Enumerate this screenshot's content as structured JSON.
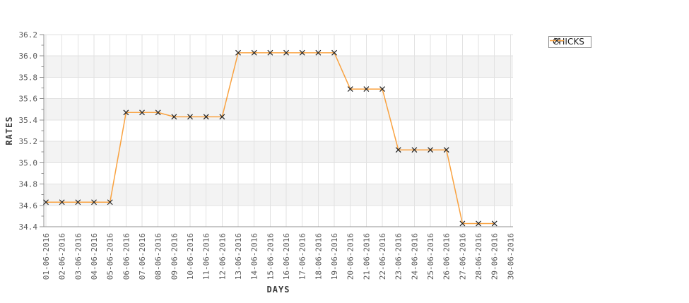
{
  "legend": {
    "items": [
      {
        "label": "CHICKS",
        "line_color": "#f9a240",
        "marker": "x"
      }
    ]
  },
  "colors": {
    "series_line": "#f9a240",
    "marker": "#222222",
    "plot_band": "#f3f3f3",
    "gridline": "#e2e2e2",
    "axis": "#909090",
    "tick_text": "#595959",
    "axis_label_text": "#3d3d3d",
    "legend_border": "#8c8c8c"
  },
  "chart_data": {
    "type": "line",
    "title": "",
    "xlabel": "DAYS",
    "ylabel": "RATES",
    "categories": [
      "01-06-2016",
      "02-06-2016",
      "03-06-2016",
      "04-06-2016",
      "05-06-2016",
      "06-06-2016",
      "07-06-2016",
      "08-06-2016",
      "09-06-2016",
      "10-06-2016",
      "11-06-2016",
      "12-06-2016",
      "13-06-2016",
      "14-06-2016",
      "15-06-2016",
      "16-06-2016",
      "17-06-2016",
      "18-06-2016",
      "19-06-2016",
      "20-06-2016",
      "21-06-2016",
      "22-06-2016",
      "23-06-2016",
      "24-06-2016",
      "25-06-2016",
      "26-06-2016",
      "27-06-2016",
      "28-06-2016",
      "29-06-2016",
      "30-06-2016"
    ],
    "series": [
      {
        "name": "CHICKS",
        "color": "#f9a240",
        "marker": "x",
        "marker_color": "#222222",
        "values": [
          34.63,
          34.63,
          34.63,
          34.63,
          34.63,
          35.47,
          35.47,
          35.47,
          35.43,
          35.43,
          35.43,
          35.43,
          36.03,
          36.03,
          36.03,
          36.03,
          36.03,
          36.03,
          36.03,
          35.69,
          35.69,
          35.69,
          35.12,
          35.12,
          35.12,
          35.12,
          34.43,
          34.43,
          34.43,
          null
        ]
      }
    ],
    "ylim": [
      34.4,
      36.2
    ],
    "ytick_major": 0.2,
    "ytick_minor": 0.1,
    "grid": true,
    "plot_bands_alternating": true,
    "legend_position": "outside-top-right"
  }
}
